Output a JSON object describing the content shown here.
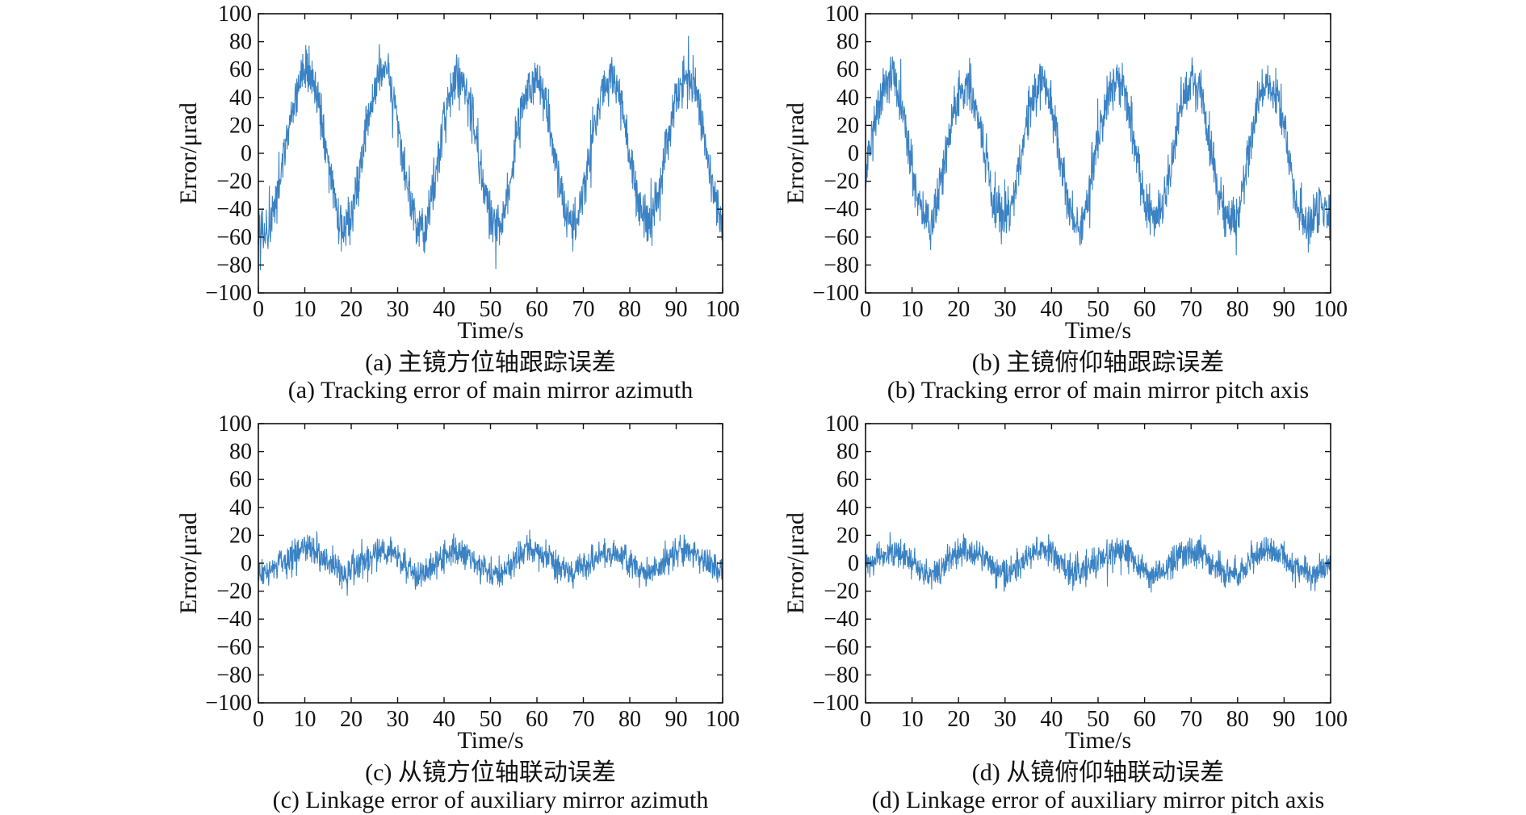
{
  "chart_data": [
    {
      "type": "line",
      "caption_cn": "(a) 主镜方位轴跟踪误差",
      "caption_en": "(a) Tracking error of main mirror azimuth",
      "xlabel": "Time/s",
      "ylabel": "Error/μrad",
      "xlim": [
        0,
        100
      ],
      "ylim": [
        -100,
        100
      ],
      "xticks": [
        0,
        10,
        20,
        30,
        40,
        50,
        60,
        70,
        80,
        90,
        100
      ],
      "yticks": [
        -100,
        -80,
        -60,
        -40,
        -20,
        0,
        20,
        40,
        60,
        80,
        100
      ],
      "color": "#3a82c4",
      "series": [
        {
          "x": [
            0,
            2,
            4,
            6,
            8,
            10,
            12,
            14,
            16,
            18,
            20,
            22,
            24,
            26,
            28,
            30,
            32,
            34,
            36,
            38,
            40,
            42,
            44,
            46,
            48,
            50,
            52,
            54,
            56,
            58,
            60,
            62,
            64,
            66,
            68,
            70,
            72,
            74,
            76,
            78,
            80,
            82,
            84,
            86,
            88,
            90,
            92,
            94,
            96,
            98,
            100
          ],
          "values": [
            -45,
            -62,
            -30,
            5,
            40,
            60,
            52,
            15,
            -28,
            -55,
            -48,
            -10,
            30,
            58,
            55,
            22,
            -20,
            -52,
            -55,
            -20,
            25,
            52,
            55,
            30,
            -15,
            -50,
            -55,
            -25,
            20,
            50,
            55,
            35,
            -5,
            -42,
            -52,
            -30,
            12,
            45,
            55,
            40,
            0,
            -38,
            -50,
            -35,
            5,
            40,
            55,
            48,
            15,
            -25,
            -55
          ]
        }
      ]
    },
    {
      "type": "line",
      "caption_cn": "(b) 主镜俯仰轴跟踪误差",
      "caption_en": "(b) Tracking error of main mirror pitch axis",
      "xlabel": "Time/s",
      "ylabel": "Error/μrad",
      "xlim": [
        0,
        100
      ],
      "ylim": [
        -100,
        100
      ],
      "xticks": [
        0,
        10,
        20,
        30,
        40,
        50,
        60,
        70,
        80,
        90,
        100
      ],
      "yticks": [
        -100,
        -80,
        -60,
        -40,
        -20,
        0,
        20,
        40,
        60,
        80,
        100
      ],
      "color": "#3a82c4",
      "series": [
        {
          "x": [
            0,
            2,
            4,
            6,
            8,
            10,
            12,
            14,
            16,
            18,
            20,
            22,
            24,
            26,
            28,
            30,
            32,
            34,
            36,
            38,
            40,
            42,
            44,
            46,
            48,
            50,
            52,
            54,
            56,
            58,
            60,
            62,
            64,
            66,
            68,
            70,
            72,
            74,
            76,
            78,
            80,
            82,
            84,
            86,
            88,
            90,
            92,
            94,
            96,
            98,
            100
          ],
          "values": [
            -20,
            25,
            50,
            55,
            30,
            -10,
            -42,
            -48,
            -25,
            15,
            42,
            50,
            30,
            -5,
            -40,
            -50,
            -30,
            10,
            42,
            52,
            35,
            -5,
            -40,
            -55,
            -30,
            10,
            42,
            52,
            40,
            0,
            -35,
            -50,
            -38,
            0,
            38,
            50,
            45,
            10,
            -30,
            -48,
            -45,
            -10,
            30,
            50,
            48,
            20,
            -25,
            -48,
            -50,
            -35,
            -45
          ]
        }
      ]
    },
    {
      "type": "line",
      "caption_cn": "(c) 从镜方位轴联动误差",
      "caption_en": "(c) Linkage error of auxiliary mirror azimuth",
      "xlabel": "Time/s",
      "ylabel": "Error/μrad",
      "xlim": [
        0,
        100
      ],
      "ylim": [
        -100,
        100
      ],
      "xticks": [
        0,
        10,
        20,
        30,
        40,
        50,
        60,
        70,
        80,
        90,
        100
      ],
      "yticks": [
        -100,
        -80,
        -60,
        -40,
        -20,
        0,
        20,
        40,
        60,
        80,
        100
      ],
      "color": "#3a82c4",
      "series": [
        {
          "x": [
            0,
            2,
            4,
            6,
            8,
            10,
            12,
            14,
            16,
            18,
            20,
            22,
            24,
            26,
            28,
            30,
            32,
            34,
            36,
            38,
            40,
            42,
            44,
            46,
            48,
            50,
            52,
            54,
            56,
            58,
            60,
            62,
            64,
            66,
            68,
            70,
            72,
            74,
            76,
            78,
            80,
            82,
            84,
            86,
            88,
            90,
            92,
            94,
            96,
            98,
            100
          ],
          "values": [
            -5,
            -8,
            -3,
            2,
            6,
            10,
            8,
            3,
            -3,
            -8,
            -6,
            0,
            5,
            10,
            9,
            4,
            -2,
            -8,
            -7,
            -1,
            5,
            10,
            9,
            4,
            -2,
            -8,
            -8,
            -3,
            3,
            9,
            9,
            5,
            -1,
            -7,
            -7,
            -2,
            3,
            8,
            9,
            6,
            0,
            -6,
            -7,
            -4,
            2,
            8,
            10,
            8,
            3,
            -3,
            -8
          ]
        }
      ]
    },
    {
      "type": "line",
      "caption_cn": "(d) 从镜俯仰轴联动误差",
      "caption_en": "(d) Linkage error of auxiliary mirror pitch axis",
      "xlabel": "Time/s",
      "ylabel": "Error/μrad",
      "xlim": [
        0,
        100
      ],
      "ylim": [
        -100,
        100
      ],
      "xticks": [
        0,
        10,
        20,
        30,
        40,
        50,
        60,
        70,
        80,
        90,
        100
      ],
      "yticks": [
        -100,
        -80,
        -60,
        -40,
        -20,
        0,
        20,
        40,
        60,
        80,
        100
      ],
      "color": "#3a82c4",
      "series": [
        {
          "x": [
            0,
            2,
            4,
            6,
            8,
            10,
            12,
            14,
            16,
            18,
            20,
            22,
            24,
            26,
            28,
            30,
            32,
            34,
            36,
            38,
            40,
            42,
            44,
            46,
            48,
            50,
            52,
            54,
            56,
            58,
            60,
            62,
            64,
            66,
            68,
            70,
            72,
            74,
            76,
            78,
            80,
            82,
            84,
            86,
            88,
            90,
            92,
            94,
            96,
            98,
            100
          ],
          "values": [
            -2,
            3,
            7,
            9,
            6,
            1,
            -5,
            -7,
            -3,
            3,
            7,
            9,
            6,
            0,
            -5,
            -8,
            -4,
            2,
            7,
            10,
            6,
            0,
            -5,
            -7,
            -3,
            2,
            7,
            9,
            7,
            1,
            -5,
            -8,
            -6,
            0,
            6,
            9,
            8,
            2,
            -4,
            -7,
            -6,
            -1,
            5,
            9,
            8,
            3,
            -3,
            -6,
            -7,
            -4,
            -4
          ]
        }
      ]
    }
  ]
}
